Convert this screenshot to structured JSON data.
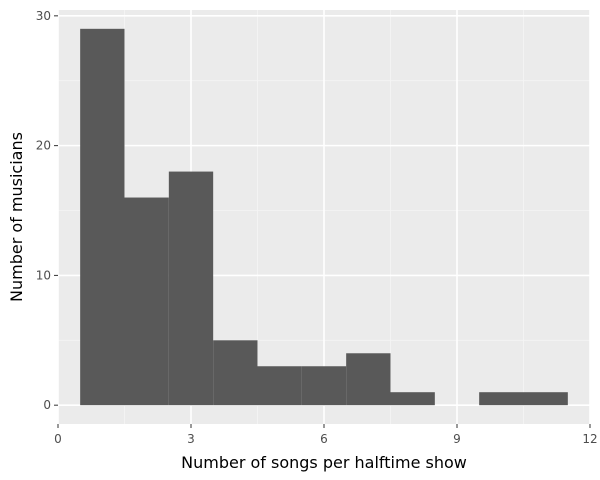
{
  "chart_data": {
    "type": "bar",
    "bin_width": 1,
    "bins": [
      {
        "x_start": 0.5,
        "x_end": 1.5,
        "count": 29
      },
      {
        "x_start": 1.5,
        "x_end": 2.5,
        "count": 16
      },
      {
        "x_start": 2.5,
        "x_end": 3.5,
        "count": 18
      },
      {
        "x_start": 3.5,
        "x_end": 4.5,
        "count": 5
      },
      {
        "x_start": 4.5,
        "x_end": 5.5,
        "count": 3
      },
      {
        "x_start": 5.5,
        "x_end": 6.5,
        "count": 3
      },
      {
        "x_start": 6.5,
        "x_end": 7.5,
        "count": 4
      },
      {
        "x_start": 7.5,
        "x_end": 8.5,
        "count": 1
      },
      {
        "x_start": 8.5,
        "x_end": 9.5,
        "count": 0
      },
      {
        "x_start": 9.5,
        "x_end": 10.5,
        "count": 1
      },
      {
        "x_start": 10.5,
        "x_end": 11.5,
        "count": 1
      }
    ],
    "xlabel": "Number of songs per halftime show",
    "ylabel": "Number of musicians",
    "x_ticks": [
      "0",
      "3",
      "6",
      "9",
      "12"
    ],
    "y_ticks": [
      "0",
      "10",
      "20",
      "30"
    ],
    "xlim": [
      0,
      12
    ],
    "ylim": [
      -1.45,
      30.45
    ],
    "grid": true,
    "colors": {
      "bar_fill": "#595959",
      "panel_background": "#ebebeb",
      "grid_major": "#ffffff",
      "grid_minor": "#f5f5f5"
    }
  }
}
